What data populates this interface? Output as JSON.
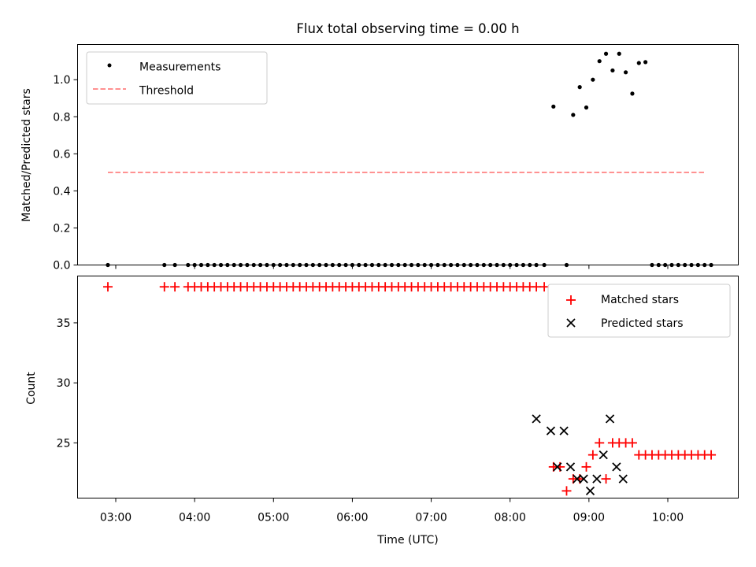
{
  "chart_data": [
    {
      "type": "scatter",
      "title": "Flux total observing time = 0.00 h",
      "ylabel": "Matched/Predicted stars",
      "xlabel": "",
      "ylim": [
        0,
        1.19
      ],
      "yticks": [
        "0.0",
        "0.2",
        "0.4",
        "0.6",
        "0.8",
        "1.0"
      ],
      "legend": "top-left",
      "series": [
        {
          "name": "Measurements",
          "color": "#000000",
          "marker": "dot",
          "x": [
            "02:54",
            "03:37",
            "03:45",
            "03:55",
            "04:00",
            "04:05",
            "04:10",
            "04:15",
            "04:20",
            "04:25",
            "04:30",
            "04:35",
            "04:40",
            "04:45",
            "04:50",
            "04:55",
            "05:00",
            "05:05",
            "05:10",
            "05:15",
            "05:20",
            "05:25",
            "05:30",
            "05:35",
            "05:40",
            "05:45",
            "05:50",
            "05:55",
            "06:00",
            "06:05",
            "06:10",
            "06:15",
            "06:20",
            "06:25",
            "06:30",
            "06:35",
            "06:40",
            "06:45",
            "06:50",
            "06:55",
            "07:00",
            "07:05",
            "07:10",
            "07:15",
            "07:20",
            "07:25",
            "07:30",
            "07:35",
            "07:40",
            "07:45",
            "07:50",
            "07:55",
            "08:00",
            "08:05",
            "08:10",
            "08:15",
            "08:20",
            "08:26",
            "08:33",
            "08:43",
            "08:48",
            "08:53",
            "08:58",
            "09:03",
            "09:08",
            "09:13",
            "09:18",
            "09:23",
            "09:28",
            "09:33",
            "09:38",
            "09:43",
            "09:48",
            "09:53",
            "09:58",
            "10:03",
            "10:08",
            "10:13",
            "10:18",
            "10:23",
            "10:28",
            "10:33"
          ],
          "y": [
            0,
            0,
            0,
            0,
            0,
            0,
            0,
            0,
            0,
            0,
            0,
            0,
            0,
            0,
            0,
            0,
            0,
            0,
            0,
            0,
            0,
            0,
            0,
            0,
            0,
            0,
            0,
            0,
            0,
            0,
            0,
            0,
            0,
            0,
            0,
            0,
            0,
            0,
            0,
            0,
            0,
            0,
            0,
            0,
            0,
            0,
            0,
            0,
            0,
            0,
            0,
            0,
            0,
            0,
            0,
            0,
            0,
            0,
            0.855,
            0,
            0.81,
            0.96,
            0.85,
            1.0,
            1.1,
            1.14,
            1.05,
            1.14,
            1.04,
            0.925,
            1.09,
            1.095,
            0,
            0,
            0,
            0,
            0,
            0,
            0,
            0,
            0,
            0
          ]
        },
        {
          "name": "Threshold",
          "color": "#ff8080",
          "marker": "dashed-line",
          "x": [
            "02:54",
            "10:28"
          ],
          "y": [
            0.5,
            0.5
          ]
        }
      ]
    },
    {
      "type": "scatter",
      "title": "",
      "xlabel": "Time (UTC)",
      "ylabel": "Count",
      "ylim": [
        20.4,
        38.9
      ],
      "yticks": [
        "25",
        "30",
        "35"
      ],
      "xticks": [
        "03:00",
        "04:00",
        "05:00",
        "06:00",
        "07:00",
        "08:00",
        "09:00",
        "10:00"
      ],
      "legend": "top-right",
      "series": [
        {
          "name": "Matched stars",
          "color": "#ff0000",
          "marker": "plus",
          "x": [
            "02:54",
            "03:37",
            "03:45",
            "03:55",
            "04:00",
            "04:05",
            "04:10",
            "04:15",
            "04:20",
            "04:25",
            "04:30",
            "04:35",
            "04:40",
            "04:45",
            "04:50",
            "04:55",
            "05:00",
            "05:05",
            "05:10",
            "05:15",
            "05:20",
            "05:25",
            "05:30",
            "05:35",
            "05:40",
            "05:45",
            "05:50",
            "05:55",
            "06:00",
            "06:05",
            "06:10",
            "06:15",
            "06:20",
            "06:25",
            "06:30",
            "06:35",
            "06:40",
            "06:45",
            "06:50",
            "06:55",
            "07:00",
            "07:05",
            "07:10",
            "07:15",
            "07:20",
            "07:25",
            "07:30",
            "07:35",
            "07:40",
            "07:45",
            "07:50",
            "07:55",
            "08:00",
            "08:05",
            "08:10",
            "08:15",
            "08:20",
            "08:26",
            "08:33",
            "08:38",
            "08:43",
            "08:48",
            "08:53",
            "08:58",
            "09:03",
            "09:08",
            "09:13",
            "09:18",
            "09:23",
            "09:28",
            "09:33",
            "09:38",
            "09:43",
            "09:48",
            "09:53",
            "09:58",
            "10:03",
            "10:08",
            "10:13",
            "10:18",
            "10:23",
            "10:28",
            "10:33"
          ],
          "y": [
            38,
            38,
            38,
            38,
            38,
            38,
            38,
            38,
            38,
            38,
            38,
            38,
            38,
            38,
            38,
            38,
            38,
            38,
            38,
            38,
            38,
            38,
            38,
            38,
            38,
            38,
            38,
            38,
            38,
            38,
            38,
            38,
            38,
            38,
            38,
            38,
            38,
            38,
            38,
            38,
            38,
            38,
            38,
            38,
            38,
            38,
            38,
            38,
            38,
            38,
            38,
            38,
            38,
            38,
            38,
            38,
            38,
            38,
            23,
            23,
            21,
            22,
            22,
            23,
            24,
            25,
            22,
            25,
            25,
            25,
            25,
            24,
            24,
            24,
            24,
            24,
            24,
            24,
            24,
            24,
            24,
            24,
            24
          ]
        },
        {
          "name": "Predicted stars",
          "color": "#000000",
          "marker": "x",
          "x": [
            "08:20",
            "08:31",
            "08:36",
            "08:41",
            "08:46",
            "08:51",
            "08:56",
            "09:01",
            "09:06",
            "09:11",
            "09:16",
            "09:21",
            "09:26"
          ],
          "y": [
            27,
            26,
            23,
            26,
            23,
            22,
            22,
            21,
            22,
            24,
            27,
            23,
            22
          ]
        }
      ]
    }
  ]
}
